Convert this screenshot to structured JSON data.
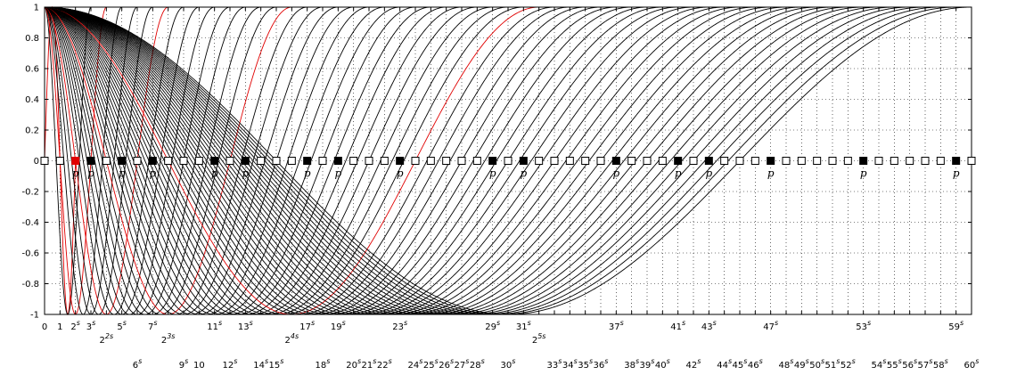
{
  "chart_data": {
    "type": "line",
    "xlim": [
      0,
      60
    ],
    "ylim": [
      -1,
      1
    ],
    "grid": true,
    "yticks": [
      -1,
      -0.8,
      -0.6,
      -0.4,
      -0.2,
      0,
      0.2,
      0.4,
      0.6,
      0.8,
      1
    ],
    "ytick_labels": [
      "-1",
      "-0.8",
      "-0.6",
      "-0.4",
      "-0.2",
      "0",
      "0.2",
      "0.4",
      "0.6",
      "0.8",
      "1"
    ],
    "xtick_labels_row1": [
      {
        "x": 0,
        "base": "0",
        "sup": ""
      },
      {
        "x": 1,
        "base": "1",
        "sup": ""
      },
      {
        "x": 2,
        "base": "2",
        "sup": "s"
      },
      {
        "x": 3,
        "base": "3",
        "sup": "s"
      },
      {
        "x": 5,
        "base": "5",
        "sup": "s"
      },
      {
        "x": 7,
        "base": "7",
        "sup": "s"
      },
      {
        "x": 11,
        "base": "11",
        "sup": "s"
      },
      {
        "x": 13,
        "base": "13",
        "sup": "s"
      },
      {
        "x": 17,
        "base": "17",
        "sup": "s"
      },
      {
        "x": 19,
        "base": "19",
        "sup": "s"
      },
      {
        "x": 23,
        "base": "23",
        "sup": "s"
      },
      {
        "x": 29,
        "base": "29",
        "sup": "s"
      },
      {
        "x": 31,
        "base": "31",
        "sup": "s"
      },
      {
        "x": 37,
        "base": "37",
        "sup": "s"
      },
      {
        "x": 41,
        "base": "41",
        "sup": "s"
      },
      {
        "x": 43,
        "base": "43",
        "sup": "s"
      },
      {
        "x": 47,
        "base": "47",
        "sup": "s"
      },
      {
        "x": 53,
        "base": "53",
        "sup": "s"
      },
      {
        "x": 59,
        "base": "59",
        "sup": "s"
      }
    ],
    "xtick_labels_row2": [
      {
        "x": 4,
        "base": "2",
        "sup": "2s"
      },
      {
        "x": 8,
        "base": "2",
        "sup": "3s"
      },
      {
        "x": 16,
        "base": "2",
        "sup": "4s"
      },
      {
        "x": 32,
        "base": "2",
        "sup": "5s"
      }
    ],
    "xtick_labels_row3": [
      {
        "x": 6,
        "base": "6",
        "sup": "s"
      },
      {
        "x": 9,
        "base": "9",
        "sup": "s"
      },
      {
        "x": 10,
        "base": "10",
        "sup": ""
      },
      {
        "x": 12,
        "base": "12",
        "sup": "s"
      },
      {
        "x": 14,
        "base": "14",
        "sup": "s"
      },
      {
        "x": 15,
        "base": "15",
        "sup": "s"
      },
      {
        "x": 18,
        "base": "18",
        "sup": "s"
      },
      {
        "x": 20,
        "base": "20",
        "sup": "s"
      },
      {
        "x": 21,
        "base": "21",
        "sup": "s"
      },
      {
        "x": 22,
        "base": "22",
        "sup": "s"
      },
      {
        "x": 24,
        "base": "24",
        "sup": "s"
      },
      {
        "x": 25,
        "base": "25",
        "sup": "s"
      },
      {
        "x": 26,
        "base": "26",
        "sup": "s"
      },
      {
        "x": 27,
        "base": "27",
        "sup": "s"
      },
      {
        "x": 28,
        "base": "28",
        "sup": "s"
      },
      {
        "x": 30,
        "base": "30",
        "sup": "s"
      },
      {
        "x": 33,
        "base": "33",
        "sup": "s"
      },
      {
        "x": 34,
        "base": "34",
        "sup": "s"
      },
      {
        "x": 35,
        "base": "35",
        "sup": "s"
      },
      {
        "x": 36,
        "base": "36",
        "sup": "s"
      },
      {
        "x": 38,
        "base": "38",
        "sup": "s"
      },
      {
        "x": 39,
        "base": "39",
        "sup": "s"
      },
      {
        "x": 40,
        "base": "40",
        "sup": "s"
      },
      {
        "x": 42,
        "base": "42",
        "sup": "s"
      },
      {
        "x": 44,
        "base": "44",
        "sup": "s"
      },
      {
        "x": 45,
        "base": "45",
        "sup": "s"
      },
      {
        "x": 46,
        "base": "46",
        "sup": "s"
      },
      {
        "x": 48,
        "base": "48",
        "sup": "s"
      },
      {
        "x": 49,
        "base": "49",
        "sup": "s"
      },
      {
        "x": 50,
        "base": "50",
        "sup": "s"
      },
      {
        "x": 51,
        "base": "51",
        "sup": "s"
      },
      {
        "x": 52,
        "base": "52",
        "sup": "s"
      },
      {
        "x": 54,
        "base": "54",
        "sup": "s"
      },
      {
        "x": 55,
        "base": "55",
        "sup": "s"
      },
      {
        "x": 56,
        "base": "56",
        "sup": "s"
      },
      {
        "x": 57,
        "base": "57",
        "sup": "s"
      },
      {
        "x": 58,
        "base": "58",
        "sup": "s"
      },
      {
        "x": 60,
        "base": "60",
        "sup": "s"
      }
    ],
    "prime_label": "p",
    "curves": [
      {
        "period": 2,
        "kind": "sin2",
        "color": "#e00000"
      },
      {
        "period": 3,
        "kind": "cos",
        "color": "#000000"
      },
      {
        "period": 4,
        "kind": "cos",
        "color": "#e00000"
      },
      {
        "period": 5,
        "kind": "cos",
        "color": "#000000"
      },
      {
        "period": 6,
        "kind": "cos",
        "color": "#000000"
      },
      {
        "period": 7,
        "kind": "cos",
        "color": "#000000"
      },
      {
        "period": 8,
        "kind": "cos",
        "color": "#e00000"
      },
      {
        "period": 9,
        "kind": "cos",
        "color": "#000000"
      },
      {
        "period": 10,
        "kind": "cos",
        "color": "#000000"
      },
      {
        "period": 11,
        "kind": "cos",
        "color": "#000000"
      },
      {
        "period": 12,
        "kind": "cos",
        "color": "#000000"
      },
      {
        "period": 13,
        "kind": "cos",
        "color": "#000000"
      },
      {
        "period": 14,
        "kind": "cos",
        "color": "#000000"
      },
      {
        "period": 15,
        "kind": "cos",
        "color": "#000000"
      },
      {
        "period": 16,
        "kind": "cos",
        "color": "#e00000"
      },
      {
        "period": 17,
        "kind": "cos",
        "color": "#000000"
      },
      {
        "period": 18,
        "kind": "cos",
        "color": "#000000"
      },
      {
        "period": 19,
        "kind": "cos",
        "color": "#000000"
      },
      {
        "period": 20,
        "kind": "cos",
        "color": "#000000"
      },
      {
        "period": 21,
        "kind": "cos",
        "color": "#000000"
      },
      {
        "period": 22,
        "kind": "cos",
        "color": "#000000"
      },
      {
        "period": 23,
        "kind": "cos",
        "color": "#000000"
      },
      {
        "period": 24,
        "kind": "cos",
        "color": "#000000"
      },
      {
        "period": 25,
        "kind": "cos",
        "color": "#000000"
      },
      {
        "period": 26,
        "kind": "cos",
        "color": "#000000"
      },
      {
        "period": 27,
        "kind": "cos",
        "color": "#000000"
      },
      {
        "period": 28,
        "kind": "cos",
        "color": "#000000"
      },
      {
        "period": 29,
        "kind": "cos",
        "color": "#000000"
      },
      {
        "period": 30,
        "kind": "cos",
        "color": "#000000"
      },
      {
        "period": 31,
        "kind": "cos",
        "color": "#000000"
      },
      {
        "period": 32,
        "kind": "cos",
        "color": "#e00000"
      },
      {
        "period": 33,
        "kind": "cos",
        "color": "#000000"
      },
      {
        "period": 34,
        "kind": "cos",
        "color": "#000000"
      },
      {
        "period": 35,
        "kind": "cos",
        "color": "#000000"
      },
      {
        "period": 36,
        "kind": "cos",
        "color": "#000000"
      },
      {
        "period": 37,
        "kind": "cos",
        "color": "#000000"
      },
      {
        "period": 38,
        "kind": "cos",
        "color": "#000000"
      },
      {
        "period": 39,
        "kind": "cos",
        "color": "#000000"
      },
      {
        "period": 40,
        "kind": "cos",
        "color": "#000000"
      },
      {
        "period": 41,
        "kind": "cos",
        "color": "#000000"
      },
      {
        "period": 42,
        "kind": "cos",
        "color": "#000000"
      },
      {
        "period": 43,
        "kind": "cos",
        "color": "#000000"
      },
      {
        "period": 44,
        "kind": "cos",
        "color": "#000000"
      },
      {
        "period": 45,
        "kind": "cos",
        "color": "#000000"
      },
      {
        "period": 46,
        "kind": "cos",
        "color": "#000000"
      },
      {
        "period": 47,
        "kind": "cos",
        "color": "#000000"
      },
      {
        "period": 48,
        "kind": "cos",
        "color": "#000000"
      },
      {
        "period": 49,
        "kind": "cos",
        "color": "#000000"
      },
      {
        "period": 50,
        "kind": "cos",
        "color": "#000000"
      },
      {
        "period": 51,
        "kind": "cos",
        "color": "#000000"
      },
      {
        "period": 52,
        "kind": "cos",
        "color": "#000000"
      },
      {
        "period": 53,
        "kind": "cos",
        "color": "#000000"
      },
      {
        "period": 54,
        "kind": "cos",
        "color": "#000000"
      },
      {
        "period": 55,
        "kind": "cos",
        "color": "#000000"
      },
      {
        "period": 56,
        "kind": "cos",
        "color": "#000000"
      },
      {
        "period": 57,
        "kind": "cos",
        "color": "#000000"
      },
      {
        "period": 58,
        "kind": "cos",
        "color": "#000000"
      },
      {
        "period": 59,
        "kind": "cos",
        "color": "#000000"
      },
      {
        "period": 60,
        "kind": "cos",
        "color": "#000000"
      }
    ],
    "markers": {
      "y": 0,
      "x": [
        0,
        1,
        2,
        3,
        4,
        5,
        6,
        7,
        8,
        9,
        10,
        11,
        12,
        13,
        14,
        15,
        16,
        17,
        18,
        19,
        20,
        21,
        22,
        23,
        24,
        25,
        26,
        27,
        28,
        29,
        30,
        31,
        32,
        33,
        34,
        35,
        36,
        37,
        38,
        39,
        40,
        41,
        42,
        43,
        44,
        45,
        46,
        47,
        48,
        49,
        50,
        51,
        52,
        53,
        54,
        55,
        56,
        57,
        58,
        59,
        60
      ],
      "red_filled": [
        2
      ],
      "black_filled": [
        3,
        5,
        7,
        11,
        13,
        17,
        19,
        23,
        29,
        31,
        37,
        41,
        43,
        47,
        53,
        59
      ],
      "prime_labeled": [
        2,
        3,
        5,
        7,
        11,
        13,
        17,
        19,
        23,
        29,
        31,
        37,
        41,
        43,
        47,
        53,
        59
      ]
    },
    "colors": {
      "red": "#e00000",
      "black": "#000000",
      "open_fill": "#ffffff"
    }
  }
}
